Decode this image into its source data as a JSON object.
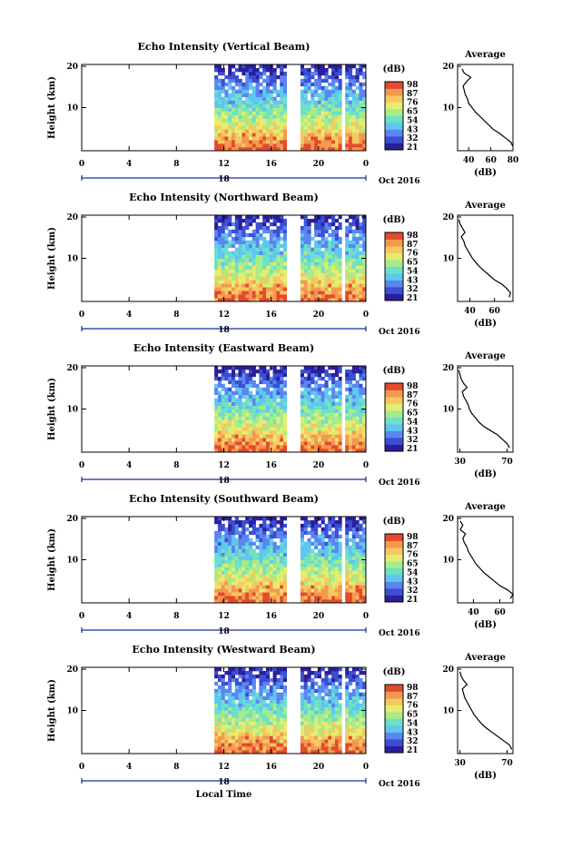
{
  "colors": {
    "scale": [
      "#2a1e9c",
      "#3c4fd2",
      "#5a86f0",
      "#5fc6f0",
      "#6ee0c8",
      "#a6ec88",
      "#e6ec70",
      "#f6c860",
      "#f49850",
      "#e24a2e"
    ],
    "frame": "#000000",
    "profile": "#000000"
  },
  "shared": {
    "ylabel": "Height (km)",
    "colorbar_unit": "(dB)",
    "avg_title": "Average",
    "avg_xlabel": "(dB)",
    "x_ticks": [
      "0",
      "4",
      "8",
      "12",
      "16",
      "20",
      "0"
    ],
    "date_label": "18",
    "month_label": "Oct 2016",
    "y_ticks": [
      "20",
      "10"
    ],
    "footer_xlabel": "Local Time"
  },
  "chart_data": [
    {
      "type": "heatmap",
      "title": "Echo Intensity (Vertical Beam)",
      "xlabel": "Local Time",
      "ylabel": "Height (km)",
      "xlim": [
        0,
        24
      ],
      "ylim": [
        0,
        20
      ],
      "data_gaps_hours": [
        [
          0,
          11.2
        ],
        [
          17.2,
          18.2
        ],
        [
          21.8,
          22.1
        ]
      ],
      "colorbar": {
        "unit": "(dB)",
        "ticks": [
          "98",
          "87",
          "76",
          "65",
          "54",
          "43",
          "32",
          "21"
        ]
      },
      "average_profile": {
        "title": "Average",
        "xlabel": "(dB)",
        "xticks": [
          "40",
          "60",
          "80"
        ],
        "xlim": [
          30,
          80
        ],
        "heights": [
          1,
          2,
          3,
          4,
          5,
          6,
          7,
          8,
          9,
          10,
          11,
          12,
          13,
          14,
          15,
          16,
          17,
          18,
          19
        ],
        "values": [
          80,
          78,
          73,
          68,
          62,
          58,
          54,
          50,
          46,
          43,
          40,
          39,
          37,
          36,
          35,
          38,
          42,
          36,
          34
        ]
      }
    },
    {
      "type": "heatmap",
      "title": "Echo Intensity (Northward Beam)",
      "xlabel": "Local Time",
      "ylabel": "Height (km)",
      "xlim": [
        0,
        24
      ],
      "ylim": [
        0,
        20
      ],
      "data_gaps_hours": [
        [
          0,
          11.2
        ],
        [
          17.2,
          18.2
        ],
        [
          21.8,
          22.1
        ]
      ],
      "colorbar": {
        "unit": "(dB)",
        "ticks": [
          "98",
          "87",
          "76",
          "65",
          "54",
          "43",
          "32",
          "21"
        ]
      },
      "average_profile": {
        "title": "Average",
        "xlabel": "(dB)",
        "xticks": [
          "40",
          "60"
        ],
        "xlim": [
          30,
          75
        ],
        "heights": [
          1,
          2,
          3,
          4,
          5,
          6,
          7,
          8,
          9,
          10,
          11,
          12,
          13,
          14,
          15,
          16,
          17,
          18,
          19
        ],
        "values": [
          72,
          73,
          70,
          66,
          60,
          56,
          52,
          48,
          45,
          42,
          40,
          38,
          36,
          35,
          33,
          36,
          34,
          32,
          31
        ]
      }
    },
    {
      "type": "heatmap",
      "title": "Echo Intensity (Eastward Beam)",
      "xlabel": "Local Time",
      "ylabel": "Height (km)",
      "xlim": [
        0,
        24
      ],
      "ylim": [
        0,
        20
      ],
      "data_gaps_hours": [
        [
          0,
          11.2
        ],
        [
          17.2,
          18.2
        ],
        [
          21.8,
          22.1
        ]
      ],
      "colorbar": {
        "unit": "(dB)",
        "ticks": [
          "98",
          "87",
          "76",
          "65",
          "54",
          "43",
          "32",
          "21"
        ]
      },
      "average_profile": {
        "title": "Average",
        "xlabel": "(dB)",
        "xticks": [
          "30",
          "70"
        ],
        "xlim": [
          28,
          75
        ],
        "heights": [
          1,
          2,
          3,
          4,
          5,
          6,
          7,
          8,
          9,
          10,
          11,
          12,
          13,
          14,
          15,
          16,
          17,
          18,
          19
        ],
        "values": [
          72,
          70,
          66,
          62,
          56,
          50,
          46,
          43,
          40,
          38,
          37,
          35,
          33,
          32,
          36,
          33,
          31,
          30,
          29
        ]
      }
    },
    {
      "type": "heatmap",
      "title": "Echo Intensity (Southward Beam)",
      "xlabel": "Local Time",
      "ylabel": "Height (km)",
      "xlim": [
        0,
        24
      ],
      "ylim": [
        0,
        20
      ],
      "data_gaps_hours": [
        [
          0,
          11.2
        ],
        [
          17.2,
          18.2
        ],
        [
          21.8,
          22.1
        ]
      ],
      "colorbar": {
        "unit": "(dB)",
        "ticks": [
          "98",
          "87",
          "76",
          "65",
          "54",
          "43",
          "32",
          "21"
        ]
      },
      "average_profile": {
        "title": "Average",
        "xlabel": "(dB)",
        "xticks": [
          "40",
          "60"
        ],
        "xlim": [
          28,
          70
        ],
        "heights": [
          1,
          2,
          3,
          4,
          5,
          6,
          7,
          8,
          9,
          10,
          11,
          12,
          13,
          14,
          15,
          16,
          17,
          18,
          19
        ],
        "values": [
          68,
          70,
          66,
          60,
          56,
          52,
          48,
          45,
          42,
          40,
          38,
          36,
          35,
          33,
          32,
          34,
          30,
          32,
          30
        ]
      }
    },
    {
      "type": "heatmap",
      "title": "Echo Intensity (Westward Beam)",
      "xlabel": "Local Time",
      "ylabel": "Height (km)",
      "xlim": [
        0,
        24
      ],
      "ylim": [
        0,
        20
      ],
      "data_gaps_hours": [
        [
          0,
          11.2
        ],
        [
          17.2,
          18.2
        ],
        [
          21.8,
          22.1
        ]
      ],
      "colorbar": {
        "unit": "(dB)",
        "ticks": [
          "98",
          "87",
          "76",
          "65",
          "54",
          "43",
          "32",
          "21"
        ]
      },
      "average_profile": {
        "title": "Average",
        "xlabel": "(dB)",
        "xticks": [
          "30",
          "70"
        ],
        "xlim": [
          28,
          75
        ],
        "heights": [
          1,
          2,
          3,
          4,
          5,
          6,
          7,
          8,
          9,
          10,
          11,
          12,
          13,
          14,
          15,
          16,
          17,
          18,
          19
        ],
        "values": [
          74,
          72,
          67,
          62,
          57,
          52,
          48,
          45,
          42,
          40,
          38,
          36,
          34,
          33,
          32,
          36,
          33,
          31,
          30
        ]
      }
    }
  ]
}
